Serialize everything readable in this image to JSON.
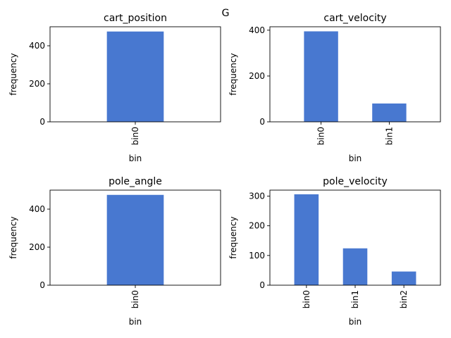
{
  "figure": {
    "suptitle": "G"
  },
  "chart_data": [
    {
      "type": "bar",
      "title": "cart_position",
      "xlabel": "bin",
      "ylabel": "frequency",
      "categories": [
        "bin0"
      ],
      "values": [
        475
      ],
      "ylim": [
        0,
        500
      ],
      "yticks": [
        0,
        200,
        400
      ],
      "grid": false,
      "color": "#4878d0"
    },
    {
      "type": "bar",
      "title": "cart_velocity",
      "xlabel": "bin",
      "ylabel": "frequency",
      "categories": [
        "bin0",
        "bin1"
      ],
      "values": [
        395,
        80
      ],
      "ylim": [
        0,
        415
      ],
      "yticks": [
        0,
        200,
        400
      ],
      "grid": false,
      "color": "#4878d0"
    },
    {
      "type": "bar",
      "title": "pole_angle",
      "xlabel": "bin",
      "ylabel": "frequency",
      "categories": [
        "bin0"
      ],
      "values": [
        475
      ],
      "ylim": [
        0,
        500
      ],
      "yticks": [
        0,
        200,
        400
      ],
      "grid": false,
      "color": "#4878d0"
    },
    {
      "type": "bar",
      "title": "pole_velocity",
      "xlabel": "bin",
      "ylabel": "frequency",
      "categories": [
        "bin0",
        "bin1",
        "bin2"
      ],
      "values": [
        306,
        124,
        46
      ],
      "ylim": [
        0,
        320
      ],
      "yticks": [
        0,
        100,
        200,
        300
      ],
      "grid": false,
      "color": "#4878d0"
    }
  ]
}
